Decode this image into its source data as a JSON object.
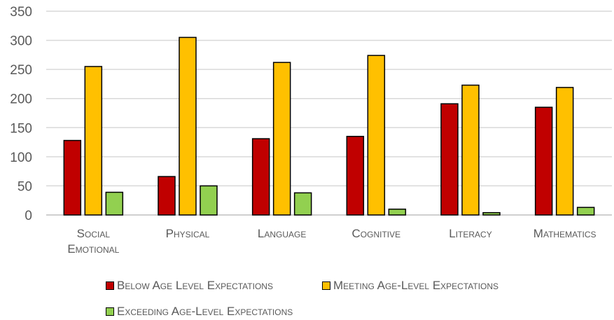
{
  "chart_data": {
    "type": "bar",
    "title": "",
    "xlabel": "",
    "ylabel": "",
    "ylim": [
      0,
      350
    ],
    "yticks": [
      0,
      50,
      100,
      150,
      200,
      250,
      300,
      350
    ],
    "grid": true,
    "legend_position": "bottom",
    "categories": [
      [
        "Social",
        "Emotional"
      ],
      [
        "Physical"
      ],
      [
        "Language"
      ],
      [
        "Cognitive"
      ],
      [
        "Literacy"
      ],
      [
        "Mathematics"
      ]
    ],
    "series": [
      {
        "name": "Below Age Level Expectations",
        "color": "#c00000",
        "values": [
          128,
          66,
          131,
          135,
          191,
          185
        ]
      },
      {
        "name": "Meeting Age-Level Expectations",
        "color": "#ffc000",
        "values": [
          255,
          305,
          262,
          274,
          223,
          219
        ]
      },
      {
        "name": "Exceeding Age-Level Expectations",
        "color": "#92d050",
        "values": [
          39,
          50,
          38,
          10,
          4,
          13
        ]
      }
    ]
  }
}
